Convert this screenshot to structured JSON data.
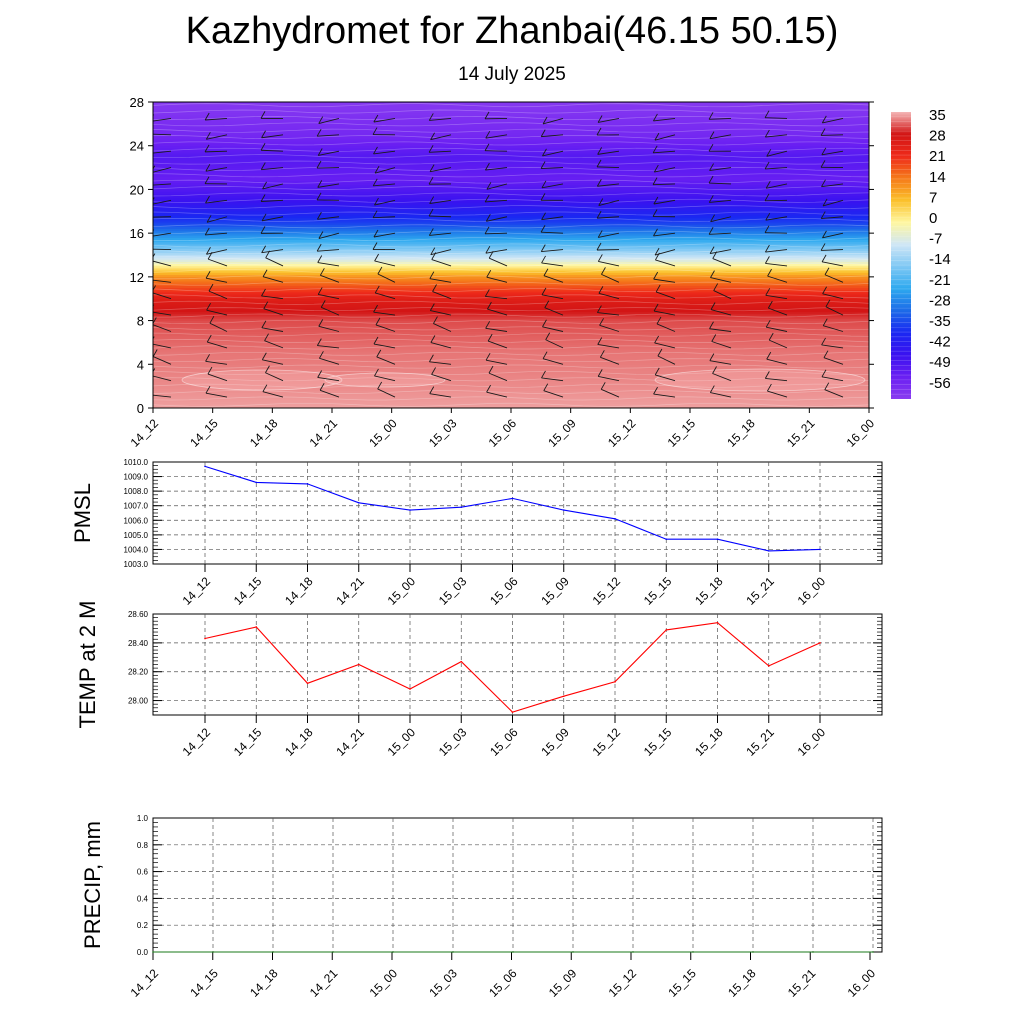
{
  "title": "Kazhydromet for Zhanbai(46.15 50.15)",
  "subtitle": "14 July 2025",
  "time_labels": [
    "14_12",
    "14_15",
    "14_18",
    "14_21",
    "15_00",
    "15_03",
    "15_06",
    "15_09",
    "15_12",
    "15_15",
    "15_18",
    "15_21",
    "16_00"
  ],
  "chart_data": [
    {
      "type": "heatmap",
      "name": "temperature-cross-section",
      "title": "Kazhydromet for Zhanbai(46.15 50.15)",
      "subtitle": "14 July 2025",
      "x": [
        "14_12",
        "14_15",
        "14_18",
        "14_21",
        "15_00",
        "15_03",
        "15_06",
        "15_09",
        "15_12",
        "15_15",
        "15_18",
        "15_21",
        "16_00"
      ],
      "ylim": [
        0,
        28
      ],
      "yticks": [
        0,
        4,
        8,
        12,
        16,
        20,
        24,
        28
      ],
      "colorbar": {
        "labels": [
          "35",
          "28",
          "21",
          "14",
          "7",
          "0",
          "-7",
          "-14",
          "-21",
          "-28",
          "-35",
          "-42",
          "-49",
          "-56"
        ],
        "colors_top_to_bottom": [
          "#f4b6b6",
          "#d21515",
          "#ee2a1a",
          "#f57a1a",
          "#fbc02a",
          "#fff7a0",
          "#cfe6f6",
          "#7fc8f4",
          "#2ea9ef",
          "#1c6be8",
          "#1a28f2",
          "#3a12f0",
          "#6a1ff2",
          "#8a3cf0"
        ]
      },
      "profile_levels": [
        0,
        2,
        5,
        8,
        10,
        12,
        13.5,
        15,
        17,
        19,
        21,
        23,
        25,
        28
      ],
      "profile_temps": [
        34,
        33,
        32,
        30,
        24,
        10,
        -8,
        -22,
        -38,
        -48,
        -55,
        -52,
        -58,
        -62
      ],
      "grid": false
    },
    {
      "type": "line",
      "name": "pmsl",
      "ylabel": "PMSL",
      "x": [
        "14_12",
        "14_15",
        "14_18",
        "14_21",
        "15_00",
        "15_03",
        "15_06",
        "15_09",
        "15_12",
        "15_15",
        "15_18",
        "15_21",
        "16_00"
      ],
      "series": [
        {
          "values": [
            1009.7,
            1008.6,
            1008.5,
            1007.2,
            1006.7,
            1006.9,
            1007.5,
            1006.7,
            1006.1,
            1004.7,
            1004.7,
            1003.9,
            1004.0
          ],
          "color": "#0000ff"
        }
      ],
      "ylim": [
        1003.0,
        1010.0
      ],
      "yticks": [
        "1003.0",
        "1004.0",
        "1005.0",
        "1006.0",
        "1007.0",
        "1008.0",
        "1009.0",
        "1010.0"
      ],
      "grid": true
    },
    {
      "type": "line",
      "name": "temp-2m",
      "ylabel": "TEMP at 2 M",
      "x": [
        "14_12",
        "14_15",
        "14_18",
        "14_21",
        "15_00",
        "15_03",
        "15_06",
        "15_09",
        "15_12",
        "15_15",
        "15_18",
        "15_21",
        "16_00"
      ],
      "series": [
        {
          "values": [
            28.43,
            28.51,
            28.12,
            28.25,
            28.08,
            28.27,
            27.92,
            28.03,
            28.13,
            28.49,
            28.54,
            28.24,
            28.4
          ],
          "color": "#ff0000"
        }
      ],
      "ylim": [
        27.9,
        28.6
      ],
      "yticks": [
        "28.00",
        "28.20",
        "28.40",
        "28.60"
      ],
      "grid": true
    },
    {
      "type": "line",
      "name": "precip",
      "ylabel": "PRECIP, mm",
      "x": [
        "14_12",
        "14_15",
        "14_18",
        "14_21",
        "15_00",
        "15_03",
        "15_06",
        "15_09",
        "15_12",
        "15_15",
        "15_18",
        "15_21",
        "16_00"
      ],
      "series": [
        {
          "values": [
            0,
            0,
            0,
            0,
            0,
            0,
            0,
            0,
            0,
            0,
            0,
            0,
            0
          ],
          "color": "#1a7a1a"
        }
      ],
      "ylim": [
        0,
        1.0
      ],
      "yticks": [
        "0.0",
        "0.2",
        "0.4",
        "0.6",
        "0.8",
        "1.0"
      ],
      "grid": true
    }
  ]
}
